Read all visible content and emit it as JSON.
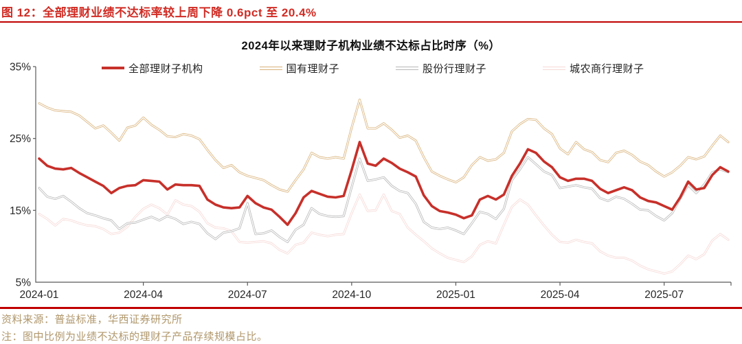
{
  "header": {
    "title": "图 12：全部理财业绩不达标率较上周下降 0.6pct 至 20.4%"
  },
  "footer": {
    "source": "资料来源：普益标准，华西证券研究所",
    "note": "注：图中比例为业绩不达标的理财子产品存续规模占比。"
  },
  "colors": {
    "title_red": "#d02c24",
    "rule_red": "#c00000",
    "footer_tan": "#b0976b",
    "axis": "#595959",
    "tick_text": "#262626"
  },
  "chart_data": {
    "type": "line",
    "title": "2024年以来理财子机构业绩不达标占比时序（%）",
    "x_unit": "weekly observations, 2024-01 to 2025-08",
    "n_points": 87,
    "x_tick_indices": [
      0,
      13,
      26,
      39,
      52,
      65,
      78
    ],
    "x_tick_labels": [
      "2024-01",
      "2024-04",
      "2024-07",
      "2024-10",
      "2025-01",
      "2025-04",
      "2025-07"
    ],
    "y_tick_values": [
      35,
      25,
      15,
      5
    ],
    "y_tick_labels": [
      "35%",
      "25%",
      "15%",
      "5%"
    ],
    "ylim": [
      5,
      35
    ],
    "grid": false,
    "legend_position": "top",
    "series": [
      {
        "key": "total",
        "name": "全部理财子机构",
        "color": "#c7302a",
        "style": "solid-thick",
        "values": [
          22.2,
          21.2,
          20.8,
          20.7,
          20.9,
          20.2,
          19.6,
          19.0,
          18.4,
          17.4,
          18.1,
          18.4,
          18.5,
          19.2,
          19.1,
          19.0,
          17.9,
          18.6,
          18.5,
          18.5,
          18.4,
          16.5,
          15.8,
          15.4,
          15.3,
          15.4,
          17.0,
          16.0,
          15.4,
          15.1,
          14.1,
          13.0,
          14.6,
          16.8,
          17.7,
          17.3,
          16.9,
          16.8,
          17.0,
          20.6,
          24.5,
          21.5,
          21.2,
          22.2,
          21.6,
          20.8,
          20.3,
          19.7,
          17.1,
          15.6,
          14.9,
          14.7,
          14.4,
          13.9,
          14.3,
          16.5,
          17.0,
          16.5,
          17.2,
          19.8,
          21.5,
          23.5,
          23.0,
          21.8,
          21.0,
          19.6,
          19.1,
          19.4,
          19.4,
          19.1,
          18.0,
          17.4,
          17.8,
          18.2,
          17.8,
          16.8,
          16.3,
          16.1,
          15.6,
          15.1,
          16.8,
          19.0,
          17.9,
          18.1,
          19.9,
          21.0,
          20.4
        ]
      },
      {
        "key": "state-owned",
        "name": "国有理财子",
        "color": "#d8b178",
        "style": "double",
        "values": [
          29.9,
          29.3,
          28.9,
          28.8,
          28.7,
          28.2,
          27.3,
          26.4,
          26.8,
          25.8,
          24.7,
          26.5,
          26.8,
          27.9,
          26.9,
          26.2,
          25.3,
          25.2,
          25.6,
          25.4,
          24.9,
          23.4,
          22.0,
          20.9,
          21.3,
          20.3,
          19.8,
          19.5,
          19.2,
          18.5,
          17.9,
          17.6,
          19.2,
          20.7,
          23.0,
          22.4,
          22.2,
          22.4,
          22.2,
          26.5,
          30.4,
          26.4,
          26.4,
          27.1,
          26.2,
          25.1,
          25.4,
          24.7,
          22.4,
          20.4,
          19.8,
          19.3,
          18.9,
          19.6,
          21.3,
          22.4,
          21.9,
          22.1,
          23.0,
          26.0,
          27.0,
          27.7,
          27.6,
          26.4,
          25.6,
          23.6,
          22.8,
          24.5,
          23.5,
          23.1,
          22.0,
          21.7,
          23.0,
          23.3,
          22.7,
          21.8,
          21.3,
          20.4,
          19.7,
          20.3,
          21.2,
          22.4,
          22.1,
          22.5,
          24.0,
          25.4,
          24.5
        ]
      },
      {
        "key": "joint-stock",
        "name": "股份行理财子",
        "color": "#b7b7b7",
        "style": "double",
        "values": [
          18.1,
          16.9,
          16.6,
          17.0,
          16.2,
          15.3,
          14.6,
          14.3,
          13.9,
          13.6,
          12.4,
          13.2,
          13.3,
          13.7,
          14.1,
          13.6,
          14.2,
          13.8,
          13.1,
          13.4,
          13.1,
          11.8,
          11.0,
          11.9,
          12.1,
          12.5,
          16.0,
          11.7,
          11.8,
          12.2,
          11.3,
          10.6,
          12.3,
          13.0,
          15.3,
          14.5,
          14.2,
          14.1,
          14.2,
          18.2,
          22.2,
          19.1,
          19.3,
          19.6,
          18.4,
          17.7,
          17.4,
          15.9,
          13.4,
          12.6,
          12.4,
          12.6,
          12.2,
          11.7,
          13.2,
          14.8,
          14.5,
          13.8,
          15.2,
          19.2,
          20.7,
          22.4,
          21.4,
          20.4,
          19.9,
          18.1,
          18.3,
          18.5,
          18.2,
          18.0,
          16.7,
          16.3,
          16.9,
          16.6,
          15.9,
          15.1,
          15.0,
          14.2,
          13.6,
          14.6,
          16.6,
          18.5,
          17.4,
          18.6,
          20.3,
          20.7,
          20.3
        ]
      },
      {
        "key": "city-rural",
        "name": "城农商行理财子",
        "color": "#f6d9d6",
        "style": "double",
        "values": [
          14.5,
          13.8,
          12.9,
          13.8,
          13.6,
          13.2,
          12.9,
          12.8,
          12.4,
          11.7,
          11.9,
          12.7,
          14.1,
          15.2,
          15.8,
          15.3,
          14.4,
          16.4,
          15.8,
          15.6,
          14.8,
          13.2,
          12.6,
          12.5,
          12.1,
          10.6,
          10.5,
          10.6,
          10.7,
          10.4,
          9.5,
          9.0,
          10.2,
          10.5,
          11.9,
          11.6,
          11.4,
          11.6,
          11.7,
          14.6,
          17.2,
          14.9,
          15.0,
          17.2,
          14.9,
          14.5,
          12.6,
          11.6,
          10.7,
          9.7,
          9.0,
          8.4,
          8.1,
          7.8,
          8.6,
          10.2,
          10.7,
          10.4,
          13.0,
          15.5,
          16.5,
          15.8,
          14.3,
          12.9,
          11.6,
          10.6,
          10.5,
          10.9,
          10.6,
          10.4,
          9.3,
          8.7,
          8.4,
          8.4,
          8.0,
          7.3,
          6.8,
          6.5,
          6.2,
          6.5,
          7.5,
          8.7,
          8.2,
          8.9,
          10.8,
          11.7,
          10.9
        ]
      }
    ]
  }
}
